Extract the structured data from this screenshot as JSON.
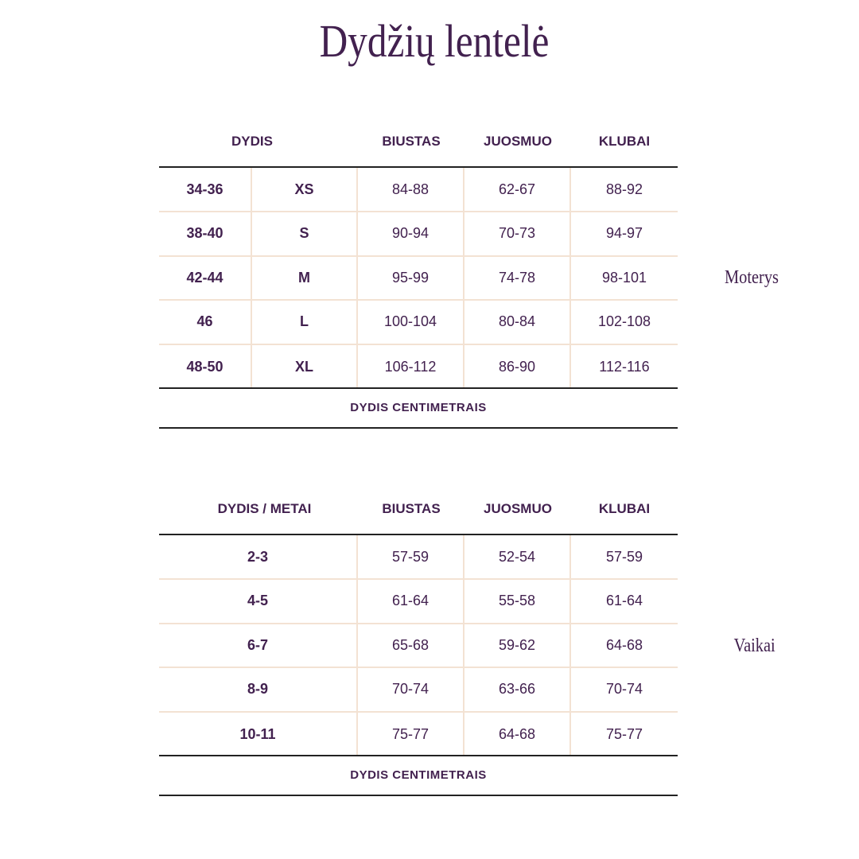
{
  "title": "Dydžių lentelė",
  "women": {
    "label": "Moterys",
    "headers": [
      "DYDIS",
      "BIUSTAS",
      "JUOSMUO",
      "KLUBAI"
    ],
    "rows": [
      [
        "34-36",
        "XS",
        "84-88",
        "62-67",
        "88-92"
      ],
      [
        "38-40",
        "S",
        "90-94",
        "70-73",
        "94-97"
      ],
      [
        "42-44",
        "M",
        "95-99",
        "74-78",
        "98-101"
      ],
      [
        "46",
        "L",
        "100-104",
        "80-84",
        "102-108"
      ],
      [
        "48-50",
        "XL",
        "106-112",
        "86-90",
        "112-116"
      ]
    ],
    "footer": "DYDIS CENTIMETRAIS"
  },
  "kids": {
    "label": "Vaikai",
    "headers": [
      "DYDIS / METAI",
      "BIUSTAS",
      "JUOSMUO",
      "KLUBAI"
    ],
    "rows": [
      [
        "2-3",
        "57-59",
        "52-54",
        "57-59"
      ],
      [
        "4-5",
        "61-64",
        "55-58",
        "61-64"
      ],
      [
        "6-7",
        "65-68",
        "59-62",
        "64-68"
      ],
      [
        "8-9",
        "70-74",
        "63-66",
        "70-74"
      ],
      [
        "10-11",
        "75-77",
        "64-68",
        "75-77"
      ]
    ],
    "footer": "DYDIS CENTIMETRAIS"
  },
  "colors": {
    "text": "#42214f",
    "grid": "#f3e2d3",
    "rule": "#222222"
  }
}
